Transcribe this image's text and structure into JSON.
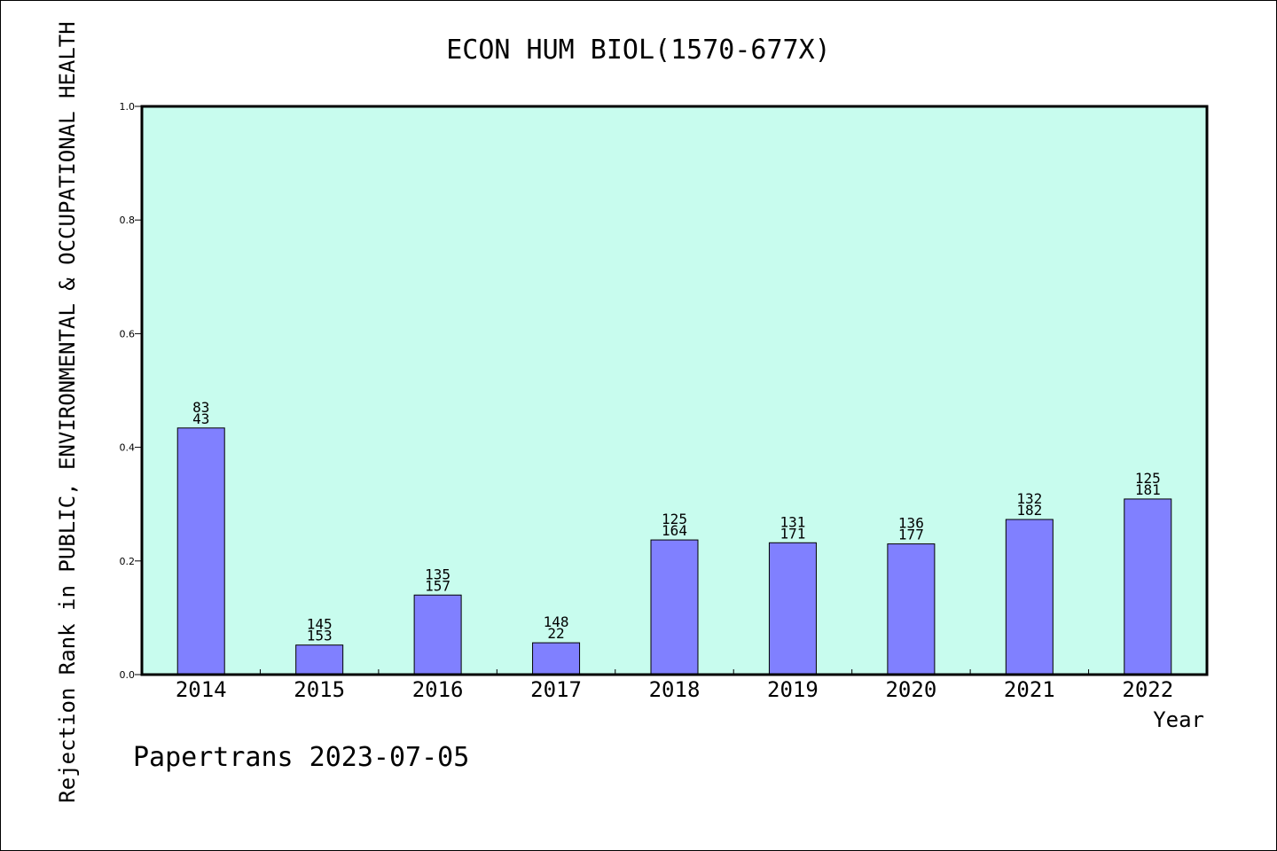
{
  "chart_data": {
    "type": "bar",
    "title": "ECON HUM BIOL(1570-677X)",
    "xlabel": "Year",
    "ylabel": "Rejection Rank in PUBLIC, ENVIRONMENTAL & OCCUPATIONAL HEALTH",
    "ylim": [
      0,
      1.0
    ],
    "yticks": [
      "0.0",
      "0.2",
      "0.4",
      "0.6",
      "0.8",
      "1.0"
    ],
    "categories": [
      "2014",
      "2015",
      "2016",
      "2017",
      "2018",
      "2019",
      "2020",
      "2021",
      "2022"
    ],
    "values": [
      0.434,
      0.052,
      0.14,
      0.056,
      0.237,
      0.232,
      0.23,
      0.273,
      0.309
    ],
    "labels_top": [
      "83",
      "145",
      "135",
      "148",
      "125",
      "131",
      "136",
      "132",
      "125"
    ],
    "labels_bottom": [
      "43",
      "153",
      "157",
      "22",
      "164",
      "171",
      "177",
      "182",
      "181"
    ],
    "grid": false,
    "colors": {
      "plot_bg": "#c8fcee",
      "bar": "#8080ff",
      "bar_edge": "#000000"
    }
  },
  "footer": {
    "text": "Papertrans 2023-07-05"
  }
}
